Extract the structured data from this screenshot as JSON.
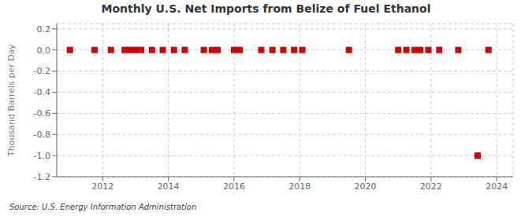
{
  "chart_data": {
    "type": "scatter",
    "title": "Monthly U.S. Net Imports from Belize of Fuel Ethanol",
    "ylabel": "Thousand Barrels per Day",
    "annotations": [
      "Source: U.S. Energy Information Administration"
    ],
    "x": [
      2011.0,
      2011.75,
      2012.25,
      2012.67,
      2012.83,
      2013.0,
      2013.17,
      2013.5,
      2013.83,
      2014.17,
      2014.5,
      2015.08,
      2015.33,
      2015.5,
      2016.0,
      2016.17,
      2016.83,
      2017.17,
      2017.5,
      2017.83,
      2018.08,
      2019.5,
      2021.0,
      2021.25,
      2021.5,
      2021.67,
      2021.92,
      2022.25,
      2022.83,
      2023.42,
      2023.75
    ],
    "values": [
      0.0,
      0.0,
      0.0,
      0.0,
      0.0,
      0.0,
      0.0,
      0.0,
      0.0,
      0.0,
      0.0,
      0.0,
      0.0,
      0.0,
      0.0,
      0.0,
      0.0,
      0.0,
      0.0,
      0.0,
      0.0,
      0.0,
      0.0,
      0.0,
      0.0,
      0.0,
      0.0,
      0.0,
      0.0,
      -1.0,
      0.0
    ],
    "color": "#cc0000",
    "marker": "square",
    "xlim": [
      2010.6,
      2024.5
    ],
    "xticks": [
      2012,
      2014,
      2016,
      2018,
      2020,
      2022,
      2024
    ],
    "ylim": [
      -1.2,
      0.25
    ],
    "yticks": [
      0.2,
      {
        "value": 0.0,
        "label": "0.0"
      },
      -0.2,
      -0.4,
      -0.6,
      -0.8,
      {
        "value": -1.0,
        "label": "-1.0"
      },
      -1.2
    ],
    "grid": true
  }
}
